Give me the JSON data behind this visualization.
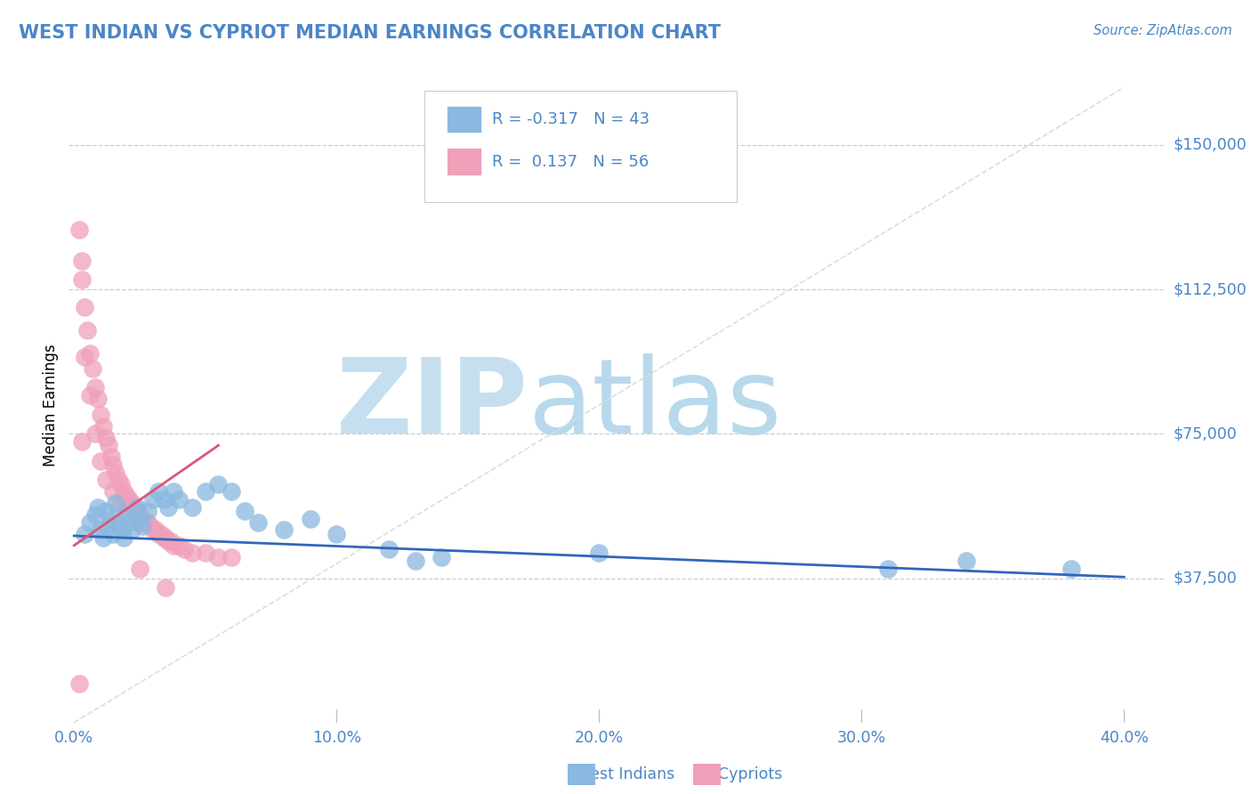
{
  "title": "WEST INDIAN VS CYPRIOT MEDIAN EARNINGS CORRELATION CHART",
  "source_text": "Source: ZipAtlas.com",
  "ylabel": "Median Earnings",
  "xlim": [
    -0.002,
    0.415
  ],
  "ylim": [
    0,
    165000
  ],
  "xticks": [
    0.0,
    0.1,
    0.2,
    0.3,
    0.4
  ],
  "xticklabels": [
    "0.0%",
    "10.0%",
    "20.0%",
    "30.0%",
    "40.0%"
  ],
  "ytick_positions": [
    37500,
    75000,
    112500,
    150000
  ],
  "yticklabels": [
    "$37,500",
    "$75,000",
    "$112,500",
    "$150,000"
  ],
  "grid_color": "#cccccc",
  "title_color": "#4a86c8",
  "axis_label_color": "#4a86c8",
  "background_color": "#ffffff",
  "watermark_zip": "ZIP",
  "watermark_atlas": "atlas",
  "watermark_color_zip": "#c5dff0",
  "watermark_color_atlas": "#b8d8ec",
  "legend_R1": "-0.317",
  "legend_N1": "43",
  "legend_R2": "0.137",
  "legend_N2": "56",
  "west_indian_color": "#8ab8e0",
  "cypriot_color": "#f0a0b8",
  "west_indian_line_color": "#3366bb",
  "cypriot_line_color": "#dd5577",
  "ref_line_color": "#dddddd",
  "west_indian_line": [
    [
      0.0,
      48500
    ],
    [
      0.4,
      37800
    ]
  ],
  "cypriot_line": [
    [
      0.0,
      46000
    ],
    [
      0.055,
      72000
    ]
  ],
  "ref_line": [
    [
      0.0,
      0
    ],
    [
      0.4,
      165000
    ]
  ],
  "west_indian_points": [
    [
      0.004,
      49000
    ],
    [
      0.006,
      52000
    ],
    [
      0.008,
      54000
    ],
    [
      0.009,
      56000
    ],
    [
      0.01,
      50000
    ],
    [
      0.011,
      48000
    ],
    [
      0.012,
      55000
    ],
    [
      0.013,
      51000
    ],
    [
      0.014,
      53000
    ],
    [
      0.015,
      49000
    ],
    [
      0.016,
      57000
    ],
    [
      0.017,
      52000
    ],
    [
      0.018,
      50000
    ],
    [
      0.019,
      48000
    ],
    [
      0.02,
      54000
    ],
    [
      0.021,
      52000
    ],
    [
      0.022,
      50000
    ],
    [
      0.024,
      56000
    ],
    [
      0.025,
      53000
    ],
    [
      0.026,
      51000
    ],
    [
      0.028,
      55000
    ],
    [
      0.03,
      58000
    ],
    [
      0.032,
      60000
    ],
    [
      0.034,
      58000
    ],
    [
      0.036,
      56000
    ],
    [
      0.038,
      60000
    ],
    [
      0.04,
      58000
    ],
    [
      0.045,
      56000
    ],
    [
      0.05,
      60000
    ],
    [
      0.055,
      62000
    ],
    [
      0.06,
      60000
    ],
    [
      0.065,
      55000
    ],
    [
      0.07,
      52000
    ],
    [
      0.08,
      50000
    ],
    [
      0.09,
      53000
    ],
    [
      0.1,
      49000
    ],
    [
      0.12,
      45000
    ],
    [
      0.13,
      42000
    ],
    [
      0.14,
      43000
    ],
    [
      0.2,
      44000
    ],
    [
      0.31,
      40000
    ],
    [
      0.34,
      42000
    ],
    [
      0.38,
      40000
    ]
  ],
  "cypriot_points": [
    [
      0.003,
      120000
    ],
    [
      0.004,
      108000
    ],
    [
      0.005,
      102000
    ],
    [
      0.006,
      96000
    ],
    [
      0.007,
      92000
    ],
    [
      0.008,
      87000
    ],
    [
      0.009,
      84000
    ],
    [
      0.01,
      80000
    ],
    [
      0.011,
      77000
    ],
    [
      0.012,
      74000
    ],
    [
      0.013,
      72000
    ],
    [
      0.014,
      69000
    ],
    [
      0.015,
      67000
    ],
    [
      0.016,
      65000
    ],
    [
      0.017,
      63000
    ],
    [
      0.018,
      62000
    ],
    [
      0.019,
      60000
    ],
    [
      0.02,
      59000
    ],
    [
      0.021,
      58000
    ],
    [
      0.022,
      57000
    ],
    [
      0.023,
      56000
    ],
    [
      0.024,
      55000
    ],
    [
      0.025,
      54000
    ],
    [
      0.026,
      53000
    ],
    [
      0.027,
      52000
    ],
    [
      0.028,
      52000
    ],
    [
      0.029,
      51000
    ],
    [
      0.03,
      50000
    ],
    [
      0.031,
      50000
    ],
    [
      0.032,
      49000
    ],
    [
      0.033,
      49000
    ],
    [
      0.034,
      48000
    ],
    [
      0.035,
      48000
    ],
    [
      0.036,
      47000
    ],
    [
      0.037,
      47000
    ],
    [
      0.038,
      46000
    ],
    [
      0.04,
      46000
    ],
    [
      0.042,
      45000
    ],
    [
      0.045,
      44000
    ],
    [
      0.05,
      44000
    ],
    [
      0.055,
      43000
    ],
    [
      0.06,
      43000
    ],
    [
      0.002,
      128000
    ],
    [
      0.003,
      115000
    ],
    [
      0.004,
      95000
    ],
    [
      0.006,
      85000
    ],
    [
      0.008,
      75000
    ],
    [
      0.01,
      68000
    ],
    [
      0.012,
      63000
    ],
    [
      0.015,
      60000
    ],
    [
      0.018,
      57000
    ],
    [
      0.02,
      55000
    ],
    [
      0.025,
      52000
    ],
    [
      0.003,
      73000
    ],
    [
      0.025,
      40000
    ],
    [
      0.002,
      10000
    ],
    [
      0.035,
      35000
    ]
  ]
}
